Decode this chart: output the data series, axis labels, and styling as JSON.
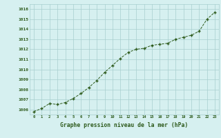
{
  "x": [
    0,
    1,
    2,
    3,
    4,
    5,
    6,
    7,
    8,
    9,
    10,
    11,
    12,
    13,
    14,
    15,
    16,
    17,
    18,
    19,
    20,
    21,
    22,
    23
  ],
  "y": [
    1005.8,
    1006.1,
    1006.6,
    1006.5,
    1006.7,
    1007.1,
    1007.6,
    1008.2,
    1008.9,
    1009.7,
    1010.4,
    1011.1,
    1011.7,
    1012.0,
    1012.1,
    1012.4,
    1012.5,
    1012.6,
    1013.0,
    1013.2,
    1013.4,
    1013.8,
    1015.0,
    1015.7
  ],
  "ylim": [
    1005.5,
    1016.5
  ],
  "yticks": [
    1006,
    1007,
    1008,
    1009,
    1010,
    1011,
    1012,
    1013,
    1014,
    1015,
    1016
  ],
  "xtick_labels": [
    "0",
    "1",
    "2",
    "3",
    "4",
    "5",
    "6",
    "7",
    "8",
    "9",
    "10",
    "11",
    "12",
    "13",
    "14",
    "15",
    "16",
    "17",
    "18",
    "19",
    "20",
    "21",
    "22",
    "23"
  ],
  "xlabel": "Graphe pression niveau de la mer (hPa)",
  "line_color": "#2d5a1b",
  "marker_color": "#2d5a1b",
  "bg_color": "#d6f0f0",
  "grid_color": "#a8cece",
  "tick_label_color": "#2d5a1b",
  "xlabel_color": "#2d5a1b"
}
